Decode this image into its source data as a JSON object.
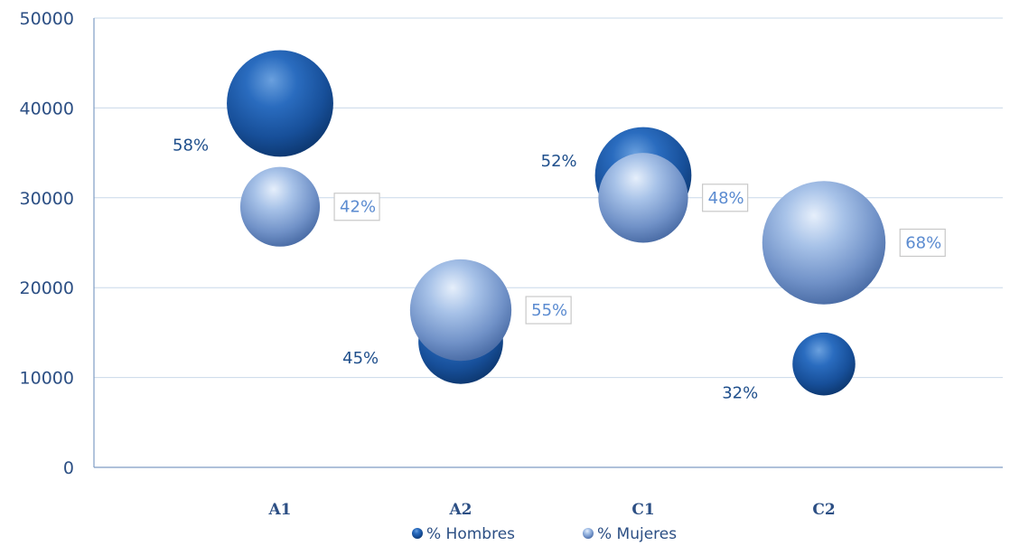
{
  "chart_data": {
    "type": "bubble",
    "categories": [
      "A1",
      "A2",
      "C1",
      "C2"
    ],
    "ylim": [
      0,
      50000
    ],
    "yticks": [
      0,
      10000,
      20000,
      30000,
      40000,
      50000
    ],
    "xlabel": "",
    "ylabel": "",
    "title": "",
    "grid": true,
    "legend_position": "bottom",
    "series": [
      {
        "name": "% Hombres",
        "color": "#1f5ba8",
        "points": [
          {
            "category": "A1",
            "y": 40500,
            "label": "58%",
            "size": 58
          },
          {
            "category": "A2",
            "y": 14000,
            "label": "45%",
            "size": 45
          },
          {
            "category": "C1",
            "y": 32500,
            "label": "52%",
            "size": 52
          },
          {
            "category": "C2",
            "y": 11500,
            "label": "32%",
            "size": 32
          }
        ]
      },
      {
        "name": "% Mujeres",
        "color": "#7a9fd6",
        "points": [
          {
            "category": "A1",
            "y": 29000,
            "label": "42%",
            "size": 42
          },
          {
            "category": "A2",
            "y": 17500,
            "label": "55%",
            "size": 55
          },
          {
            "category": "C1",
            "y": 30000,
            "label": "48%",
            "size": 48
          },
          {
            "category": "C2",
            "y": 25000,
            "label": "68%",
            "size": 68
          }
        ]
      }
    ]
  }
}
